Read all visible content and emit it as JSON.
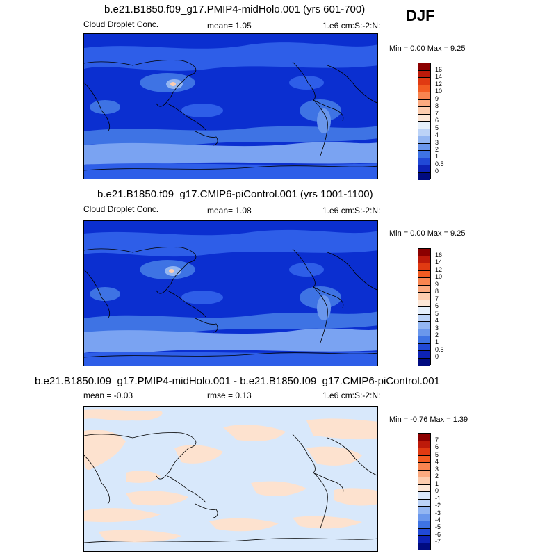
{
  "season": "DJF",
  "panels": [
    {
      "title": "b.e21.B1850.f09_g17.PMIP4-midHolo.001 (yrs 601-700)",
      "left": "Cloud Droplet Conc.",
      "center": "mean=   1.05",
      "right": "1.e6 cm:S:-2:N:",
      "minmax": "Min =   0.00 Max =   9.25",
      "colorbar_labels": [
        "16",
        "14",
        "12",
        "10",
        "9",
        "8",
        "7",
        "6",
        "5",
        "4",
        "3",
        "2",
        "1",
        "0.5",
        "0"
      ],
      "colorbar_colors": [
        "#8b0000",
        "#bd1a0a",
        "#e03a12",
        "#f25c22",
        "#f88550",
        "#fbaa80",
        "#fdcdaf",
        "#fde7d7",
        "#e6f0fc",
        "#bcd3f7",
        "#93b6f2",
        "#6a97ec",
        "#3e73e4",
        "#2149d6",
        "#0d22b5",
        "#000b80"
      ]
    },
    {
      "title": "b.e21.B1850.f09_g17.CMIP6-piControl.001 (yrs 1001-1100)",
      "left": "Cloud Droplet Conc.",
      "center": "mean=   1.08",
      "right": "1.e6 cm:S:-2:N:",
      "minmax": "Min =   0.00 Max =   9.25",
      "colorbar_labels": [
        "16",
        "14",
        "12",
        "10",
        "9",
        "8",
        "7",
        "6",
        "5",
        "4",
        "3",
        "2",
        "1",
        "0.5",
        "0"
      ],
      "colorbar_colors": [
        "#8b0000",
        "#bd1a0a",
        "#e03a12",
        "#f25c22",
        "#f88550",
        "#fbaa80",
        "#fdcdaf",
        "#fde7d7",
        "#e6f0fc",
        "#bcd3f7",
        "#93b6f2",
        "#6a97ec",
        "#3e73e4",
        "#2149d6",
        "#0d22b5",
        "#000b80"
      ]
    },
    {
      "title": "b.e21.B1850.f09_g17.PMIP4-midHolo.001 - b.e21.B1850.f09_g17.CMIP6-piControl.001",
      "left": "mean =   -0.03",
      "center": "rmse =   0.13",
      "right": "1.e6 cm:S:-2:N:",
      "minmax": "Min =  -0.76 Max =   1.39",
      "colorbar_labels": [
        "7",
        "6",
        "5",
        "4",
        "3",
        "2",
        "1",
        "0",
        "-1",
        "-2",
        "-3",
        "-4",
        "-5",
        "-6",
        "-7"
      ],
      "colorbar_colors": [
        "#8b0000",
        "#bd1a0a",
        "#e03a12",
        "#f25c22",
        "#f88550",
        "#fbaa80",
        "#fdcdaf",
        "#fde7d7",
        "#dbe8fb",
        "#bcd3f7",
        "#93b6f2",
        "#6a97ec",
        "#3e73e4",
        "#2149d6",
        "#0d22b5",
        "#000b80"
      ]
    }
  ],
  "colors": {
    "ocean_dark": "#0b2fd0",
    "mid_blue": "#2e5ee8",
    "light_blue": "#7aa3f2",
    "peach": "#fde2cf",
    "diff_blue": "#d8e8fb",
    "coast": "#000000"
  }
}
